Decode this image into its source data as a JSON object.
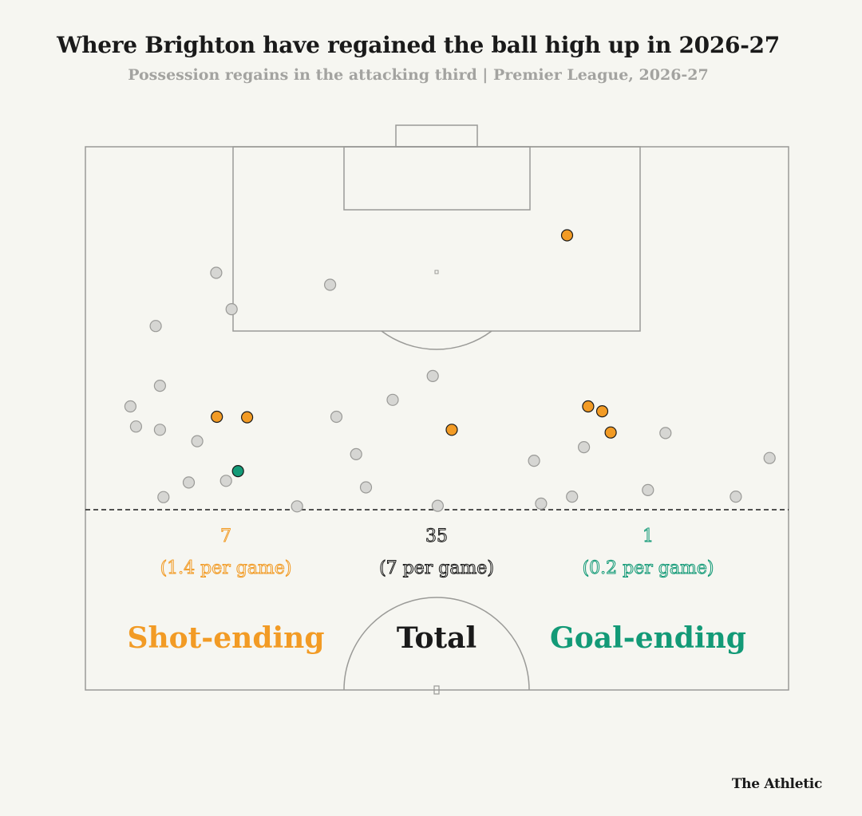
{
  "title": "Where Brighton have regained the ball high up in 2026-27",
  "subtitle": "Possession regains in the attacking third | Premier League, 2026-27",
  "brand": "The Athletic",
  "colors": {
    "shot": "#f29b25",
    "total": "#1a1a1a",
    "goal": "#139a77",
    "regain_fill": "#d6d6d3",
    "regain_stroke": "#9a9a97",
    "pitch_line": "#9a9a97",
    "background": "#f6f6f1"
  },
  "chart_data": {
    "type": "scatter",
    "pitch": "attacking third of a football pitch, goal at top",
    "x_unit": "pitch width (0 = left touchline, 1 = right touchline)",
    "y_unit": "distance from opponent goal line as fraction of visible pitch depth (0 = goal line, 1 = bottom edge of pitch drawing)",
    "categories": [
      "Regain",
      "Shot-ending",
      "Goal-ending"
    ],
    "points": [
      {
        "x": 0.685,
        "y": 0.163,
        "category": "Shot-ending"
      },
      {
        "x": 0.186,
        "y": 0.232,
        "category": "Regain"
      },
      {
        "x": 0.348,
        "y": 0.254,
        "category": "Regain"
      },
      {
        "x": 0.208,
        "y": 0.299,
        "category": "Regain"
      },
      {
        "x": 0.1,
        "y": 0.33,
        "category": "Regain"
      },
      {
        "x": 0.494,
        "y": 0.422,
        "category": "Regain"
      },
      {
        "x": 0.106,
        "y": 0.44,
        "category": "Regain"
      },
      {
        "x": 0.437,
        "y": 0.466,
        "category": "Regain"
      },
      {
        "x": 0.064,
        "y": 0.478,
        "category": "Regain"
      },
      {
        "x": 0.715,
        "y": 0.478,
        "category": "Shot-ending"
      },
      {
        "x": 0.735,
        "y": 0.487,
        "category": "Shot-ending"
      },
      {
        "x": 0.187,
        "y": 0.497,
        "category": "Shot-ending"
      },
      {
        "x": 0.357,
        "y": 0.497,
        "category": "Regain"
      },
      {
        "x": 0.23,
        "y": 0.498,
        "category": "Shot-ending"
      },
      {
        "x": 0.072,
        "y": 0.515,
        "category": "Regain"
      },
      {
        "x": 0.106,
        "y": 0.521,
        "category": "Regain"
      },
      {
        "x": 0.521,
        "y": 0.521,
        "category": "Shot-ending"
      },
      {
        "x": 0.747,
        "y": 0.526,
        "category": "Shot-ending"
      },
      {
        "x": 0.825,
        "y": 0.527,
        "category": "Regain"
      },
      {
        "x": 0.159,
        "y": 0.542,
        "category": "Regain"
      },
      {
        "x": 0.709,
        "y": 0.553,
        "category": "Regain"
      },
      {
        "x": 0.385,
        "y": 0.566,
        "category": "Regain"
      },
      {
        "x": 0.973,
        "y": 0.573,
        "category": "Regain"
      },
      {
        "x": 0.638,
        "y": 0.578,
        "category": "Regain"
      },
      {
        "x": 0.217,
        "y": 0.597,
        "category": "Goal-ending"
      },
      {
        "x": 0.2,
        "y": 0.615,
        "category": "Regain"
      },
      {
        "x": 0.147,
        "y": 0.618,
        "category": "Regain"
      },
      {
        "x": 0.399,
        "y": 0.627,
        "category": "Regain"
      },
      {
        "x": 0.8,
        "y": 0.632,
        "category": "Regain"
      },
      {
        "x": 0.111,
        "y": 0.645,
        "category": "Regain"
      },
      {
        "x": 0.692,
        "y": 0.644,
        "category": "Regain"
      },
      {
        "x": 0.925,
        "y": 0.644,
        "category": "Regain"
      },
      {
        "x": 0.648,
        "y": 0.657,
        "category": "Regain"
      },
      {
        "x": 0.301,
        "y": 0.662,
        "category": "Regain"
      },
      {
        "x": 0.501,
        "y": 0.661,
        "category": "Regain"
      }
    ],
    "summary": [
      {
        "key": "shot",
        "count": "7",
        "per_game": "(1.4 per game)",
        "label": "Shot-ending"
      },
      {
        "key": "total",
        "count": "35",
        "per_game": "(7 per game)",
        "label": "Total"
      },
      {
        "key": "goal",
        "count": "1",
        "per_game": "(0.2 per game)",
        "label": "Goal-ending"
      }
    ]
  }
}
